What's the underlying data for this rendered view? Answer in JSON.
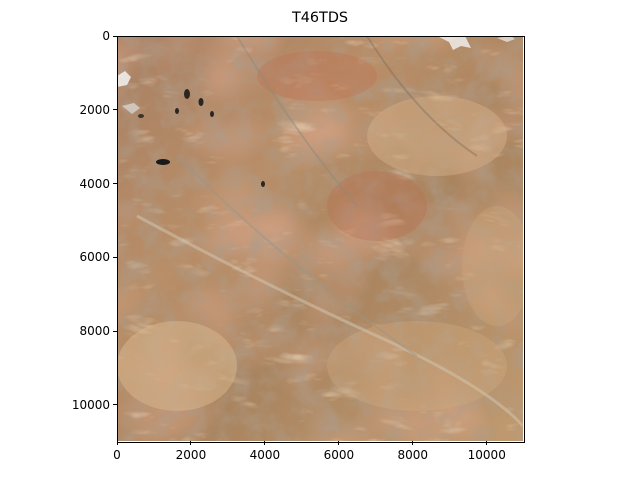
{
  "title": "T46TDS",
  "image_description_icon": "satellite-terrain-image",
  "x_ticks": [
    "0",
    "2000",
    "4000",
    "6000",
    "8000",
    "10000"
  ],
  "y_ticks": [
    "0",
    "2000",
    "4000",
    "6000",
    "8000",
    "10000"
  ],
  "x_tick_values": [
    0,
    2000,
    4000,
    6000,
    8000,
    10000
  ],
  "y_tick_values": [
    0,
    2000,
    4000,
    6000,
    8000,
    10000
  ],
  "axis_range": [
    0,
    10980
  ],
  "colors": {
    "terrain_base": "#b58a62",
    "terrain_light": "#d6b48c",
    "terrain_dark": "#6f5a45",
    "terrain_red": "#b86b4c",
    "terrain_gray": "#8f8a7d",
    "snow": "#f2f2f2",
    "lake": "#1a1a1a"
  }
}
